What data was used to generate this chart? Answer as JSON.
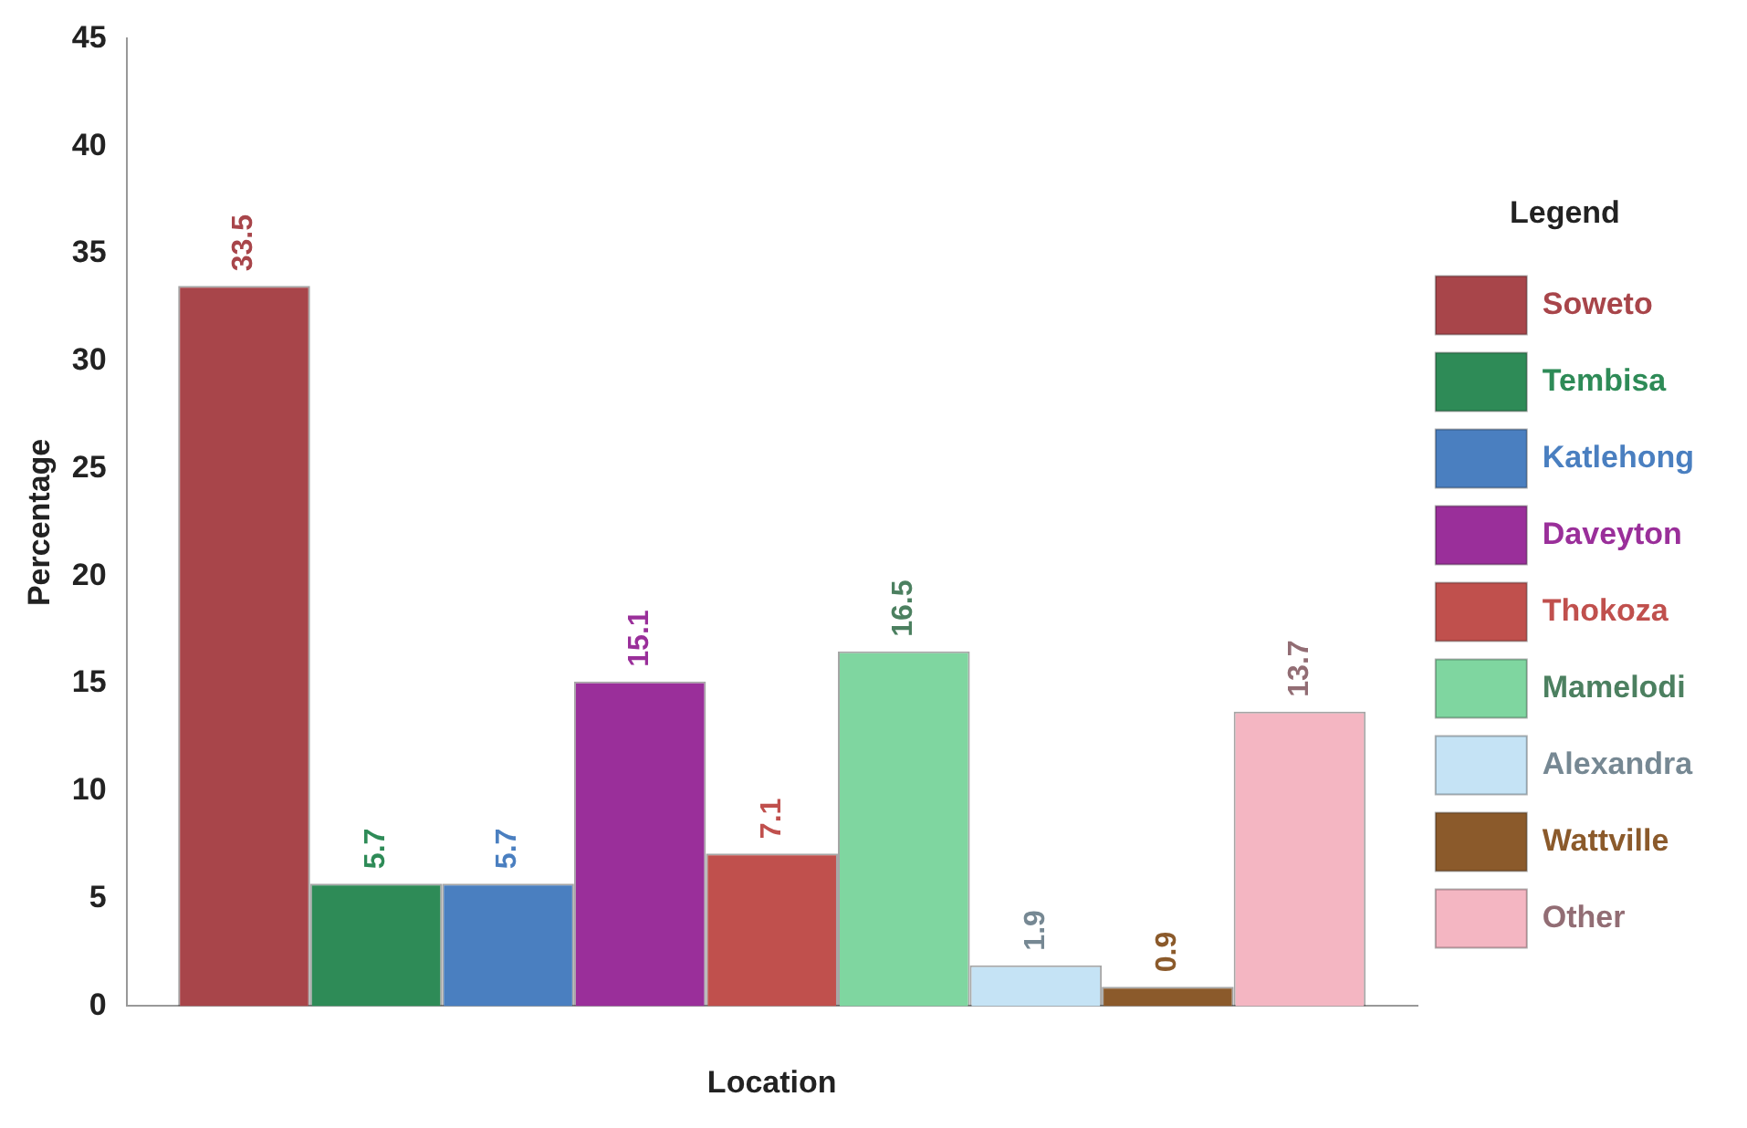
{
  "chart_data": {
    "type": "bar",
    "xlabel": "Location",
    "ylabel": "Percentage",
    "legend_title": "Legend",
    "categories": [
      null
    ],
    "series": [
      {
        "name": "Soweto",
        "color": "#a8454a",
        "values": [
          33.5
        ]
      },
      {
        "name": "Tembisa",
        "color": "#2e8b57",
        "values": [
          5.7
        ]
      },
      {
        "name": "Katlehong",
        "color": "#4a7fc0",
        "values": [
          5.7
        ]
      },
      {
        "name": "Daveyton",
        "color": "#9a2f9a",
        "values": [
          15.1
        ]
      },
      {
        "name": "Thokoza",
        "color": "#c0504d",
        "values": [
          7.1
        ]
      },
      {
        "name": "Mamelodi",
        "color": "#7fd6a0",
        "values": [
          16.5
        ]
      },
      {
        "name": "Alexandra",
        "color": "#c5e3f5",
        "values": [
          1.9
        ]
      },
      {
        "name": "Wattville",
        "color": "#8b5a2b",
        "values": [
          0.9
        ]
      },
      {
        "name": "Other",
        "color": "#f4b6c2",
        "values": [
          13.7
        ]
      }
    ],
    "ylim": [
      0,
      45
    ],
    "yticks": [
      0,
      5,
      10,
      15,
      20,
      25,
      30,
      35,
      40,
      45
    ],
    "grid": false,
    "legend": "right",
    "data_labels": true
  }
}
